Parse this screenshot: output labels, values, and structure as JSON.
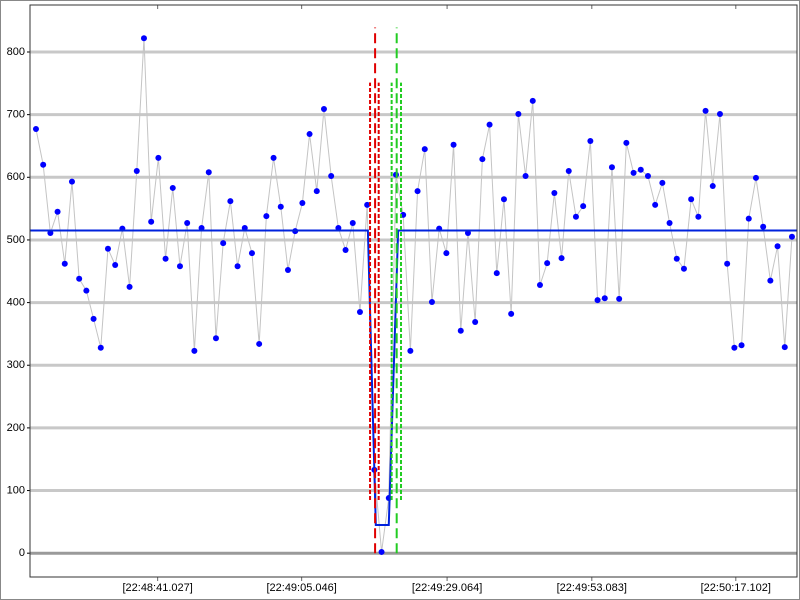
{
  "chart_data": {
    "type": "line",
    "xlim": [
      -0.83,
      105.7
    ],
    "ylim": [
      -38,
      875
    ],
    "yticks": [
      0,
      100,
      200,
      300,
      400,
      500,
      600,
      700,
      800
    ],
    "xticks": [
      {
        "value": 16.9,
        "label": "[22:48:41.027]"
      },
      {
        "value": 36.9,
        "label": "[22:49:05.046]"
      },
      {
        "value": 57.1,
        "label": "[22:49:29.064]"
      },
      {
        "value": 77.2,
        "label": "[22:49:53.083]"
      },
      {
        "value": 97.2,
        "label": "[22:50:17.102]"
      }
    ],
    "grid": true,
    "grid_color": "#c8c8c8",
    "series": [
      {
        "color": "#0000ff",
        "line_color": "#c4c4c4",
        "markers": true,
        "x": [
          0,
          1,
          2,
          3,
          4,
          5,
          6,
          7,
          8,
          9,
          10,
          11,
          12,
          13,
          14,
          15,
          16,
          17,
          18,
          19,
          20,
          21,
          22,
          23,
          24,
          25,
          26,
          27,
          28,
          29,
          30,
          31,
          32,
          33,
          34,
          35,
          36,
          37,
          38,
          39,
          40,
          41,
          42,
          43,
          44,
          45,
          46,
          47,
          48,
          49,
          50,
          51,
          52,
          53,
          54,
          55,
          56,
          57,
          58,
          59,
          60,
          61,
          62,
          63,
          64,
          65,
          66,
          67,
          68,
          69,
          70,
          71,
          72,
          73,
          74,
          75,
          76,
          77,
          78,
          79,
          80,
          81,
          82,
          83,
          84,
          85,
          86,
          87,
          88,
          89,
          90,
          91,
          92,
          93,
          94,
          95,
          96,
          97,
          98,
          99,
          100,
          101,
          102,
          103,
          104,
          105
        ],
        "values": [
          677,
          620,
          511,
          545,
          462,
          593,
          438,
          419,
          374,
          328,
          486,
          460,
          518,
          425,
          610,
          822,
          529,
          631,
          470,
          583,
          458,
          527,
          323,
          519,
          608,
          343,
          495,
          562,
          458,
          519,
          479,
          334,
          538,
          631,
          553,
          452,
          514,
          559,
          669,
          578,
          709,
          602,
          519,
          484,
          527,
          385,
          556,
          133,
          2,
          88,
          604,
          540,
          323,
          578,
          645,
          401,
          518,
          479,
          652,
          355,
          511,
          369,
          629,
          684,
          447,
          565,
          382,
          701,
          602,
          722,
          428,
          463,
          575,
          471,
          610,
          537,
          554,
          658,
          404,
          407,
          616,
          406,
          655,
          607,
          612,
          602,
          556,
          591,
          527,
          470,
          454,
          565,
          537,
          706,
          586,
          701,
          462,
          328,
          332,
          534,
          599,
          521,
          435,
          490,
          329,
          505
        ]
      },
      {
        "color": "#0000ff",
        "line_color": "#0022dd",
        "markers": false,
        "x": [
          -0.83,
          46.1,
          47.2,
          49.0,
          50.3,
          105.7
        ],
        "values": [
          515,
          515,
          45,
          45,
          515,
          515
        ]
      }
    ],
    "vlines": [
      {
        "x": 47.1,
        "y": [
          0,
          839
        ],
        "color": "#e00000",
        "dash": "dashed"
      },
      {
        "x": 46.4,
        "y": [
          85,
          751
        ],
        "color": "#e00000",
        "dash": "dotted"
      },
      {
        "x": 47.6,
        "y": [
          85,
          751
        ],
        "color": "#e00000",
        "dash": "dotted"
      },
      {
        "x": 50.1,
        "y": [
          0,
          839
        ],
        "color": "#22cc22",
        "dash": "dashed"
      },
      {
        "x": 49.4,
        "y": [
          85,
          751
        ],
        "color": "#22cc22",
        "dash": "dotted"
      },
      {
        "x": 50.7,
        "y": [
          85,
          751
        ],
        "color": "#22cc22",
        "dash": "dotted"
      }
    ]
  }
}
